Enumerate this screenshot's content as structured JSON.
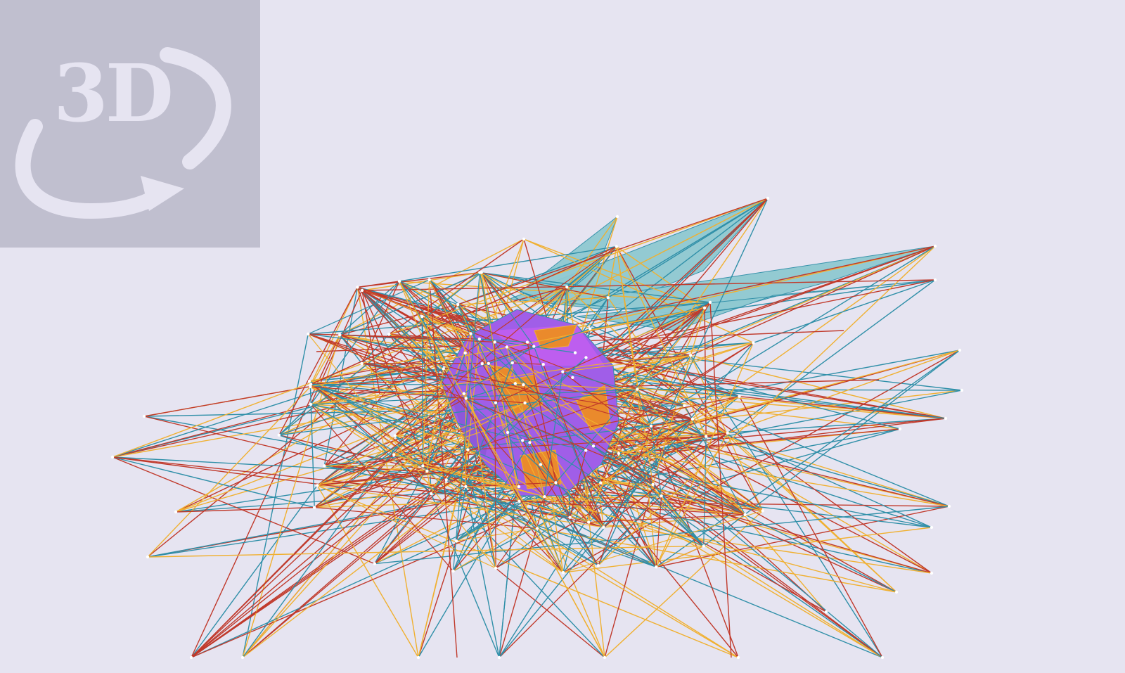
{
  "viewer": {
    "badge_label": "3D",
    "colors": {
      "background": "#e6e4f1",
      "badge_background": "#c0bfcf",
      "badge_foreground": "#e6e4f1",
      "edge_red": "#c0392b",
      "edge_teal": "#2f8fa8",
      "edge_yellow": "#f0b030",
      "face_purple": "#a05ee8",
      "face_orange": "#ea8a2c",
      "face_teal": "#8fc9d1",
      "vertex": "#ffffff"
    }
  }
}
